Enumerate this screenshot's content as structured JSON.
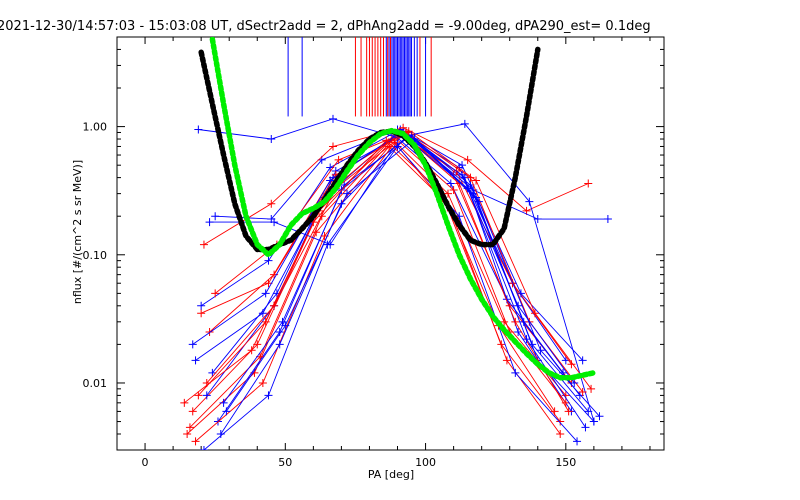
{
  "chart_data": {
    "type": "line",
    "title": "2021-12-30/14:57:03 - 15:03:08 UT, dSectr2add = 2, dPhAng2add = -9.00deg, dPA290_est=   0.1deg",
    "xlabel": "PA [deg]",
    "ylabel": "nflux [#/(cm^2 s sr MeV)]",
    "xlim": [
      -10,
      185
    ],
    "ylim": [
      0.003,
      5
    ],
    "yscale": "log",
    "x_ticks": [
      0,
      50,
      100,
      150
    ],
    "x_tick_labels": [
      "0",
      "50",
      "100",
      "150"
    ],
    "y_ticks": [
      0.01,
      0.1,
      1.0
    ],
    "y_tick_labels": [
      "0.01",
      "0.10",
      "1.00"
    ],
    "grid": false,
    "legend": "none",
    "colors": {
      "blue": "#0000ff",
      "red": "#ff0000",
      "fit_black": "#000000",
      "fit_green": "#00ee00"
    },
    "fit_curves": [
      {
        "color": "fit_black",
        "style": "thick-dotted",
        "x": [
          20,
          24,
          28,
          32,
          36,
          40,
          44,
          48,
          52,
          56,
          60,
          64,
          68,
          72,
          76,
          80,
          84,
          88,
          92,
          96,
          100,
          104,
          108,
          112,
          116,
          120,
          124,
          128,
          132,
          136,
          140
        ],
        "y": [
          3.8,
          1.5,
          0.6,
          0.25,
          0.14,
          0.11,
          0.11,
          0.12,
          0.13,
          0.16,
          0.2,
          0.27,
          0.37,
          0.5,
          0.65,
          0.8,
          0.9,
          0.92,
          0.85,
          0.7,
          0.52,
          0.36,
          0.24,
          0.17,
          0.13,
          0.12,
          0.12,
          0.16,
          0.4,
          1.2,
          4.0
        ]
      },
      {
        "color": "fit_green",
        "style": "thick-dotted",
        "x": [
          24,
          28,
          32,
          36,
          40,
          44,
          48,
          52,
          56,
          60,
          64,
          68,
          72,
          76,
          80,
          84,
          88,
          92,
          96,
          100,
          104,
          108,
          112,
          116,
          120,
          124,
          128,
          132,
          136,
          140,
          144,
          148,
          152,
          156,
          160
        ],
        "y": [
          4.8,
          1.5,
          0.5,
          0.2,
          0.12,
          0.1,
          0.12,
          0.17,
          0.21,
          0.23,
          0.26,
          0.33,
          0.45,
          0.6,
          0.75,
          0.88,
          0.93,
          0.88,
          0.72,
          0.5,
          0.3,
          0.17,
          0.1,
          0.065,
          0.045,
          0.033,
          0.026,
          0.021,
          0.017,
          0.014,
          0.012,
          0.011,
          0.011,
          0.0115,
          0.012
        ]
      }
    ],
    "vertical_marker_x": [
      51,
      56,
      75,
      77,
      79,
      80,
      81,
      82,
      83,
      84,
      85,
      86,
      86.5,
      87,
      87.5,
      88,
      88.5,
      89,
      89.5,
      90,
      90.5,
      91,
      91.5,
      92,
      92.5,
      93,
      93.5,
      94,
      94.5,
      95,
      96,
      97,
      98,
      100,
      102
    ],
    "vertical_marker_colors": [
      "blue",
      "blue",
      "red",
      "red",
      "red",
      "red",
      "red",
      "red",
      "red",
      "red",
      "red",
      "blue",
      "red",
      "blue",
      "red",
      "blue",
      "blue",
      "blue",
      "blue",
      "blue",
      "blue",
      "blue",
      "blue",
      "blue",
      "blue",
      "blue",
      "blue",
      "blue",
      "blue",
      "blue",
      "blue",
      "blue",
      "red",
      "blue",
      "red"
    ],
    "series": [
      {
        "color": "blue",
        "x": [
          25,
          45,
          63,
          90,
          112,
          131,
          150
        ],
        "y": [
          0.2,
          0.19,
          0.55,
          0.95,
          0.48,
          0.06,
          0.015
        ]
      },
      {
        "color": "red",
        "x": [
          20,
          44,
          66,
          91,
          110,
          130,
          152
        ],
        "y": [
          0.035,
          0.06,
          0.38,
          0.9,
          0.42,
          0.04,
          0.01
        ]
      },
      {
        "color": "blue",
        "x": [
          18,
          42,
          64,
          89,
          109,
          129,
          149
        ],
        "y": [
          0.015,
          0.035,
          0.28,
          0.85,
          0.36,
          0.045,
          0.012
        ]
      },
      {
        "color": "red",
        "x": [
          17,
          40,
          62,
          88,
          108,
          128,
          150
        ],
        "y": [
          0.006,
          0.02,
          0.22,
          0.8,
          0.3,
          0.03,
          0.008
        ]
      },
      {
        "color": "blue",
        "x": [
          22,
          46,
          67,
          92,
          114,
          133,
          152
        ],
        "y": [
          0.008,
          0.04,
          0.4,
          0.92,
          0.4,
          0.025,
          0.006
        ]
      },
      {
        "color": "red",
        "x": [
          15,
          39,
          61,
          87,
          107,
          127,
          148
        ],
        "y": [
          0.004,
          0.012,
          0.15,
          0.7,
          0.26,
          0.02,
          0.005
        ]
      },
      {
        "color": "blue",
        "x": [
          24,
          47,
          68,
          93,
          116,
          135,
          155
        ],
        "y": [
          0.012,
          0.05,
          0.45,
          0.9,
          0.35,
          0.03,
          0.008
        ]
      },
      {
        "color": "red",
        "x": [
          19,
          43,
          65,
          90,
          111,
          131,
          152
        ],
        "y": [
          0.008,
          0.03,
          0.3,
          0.88,
          0.45,
          0.06,
          0.014
        ]
      },
      {
        "color": "blue",
        "x": [
          26,
          48,
          70,
          94,
          117,
          138,
          158
        ],
        "y": [
          0.005,
          0.025,
          0.32,
          0.85,
          0.3,
          0.02,
          0.006
        ]
      },
      {
        "color": "red",
        "x": [
          16,
          41,
          63,
          89,
          110,
          130,
          150
        ],
        "y": [
          0.0045,
          0.016,
          0.2,
          0.82,
          0.32,
          0.025,
          0.007
        ]
      },
      {
        "color": "blue",
        "x": [
          20,
          44,
          66,
          91,
          113,
          134,
          156
        ],
        "y": [
          0.04,
          0.09,
          0.48,
          0.95,
          0.5,
          0.05,
          0.015
        ]
      },
      {
        "color": "red",
        "x": [
          21,
          45,
          67,
          92,
          115,
          136,
          158
        ],
        "y": [
          0.12,
          0.25,
          0.7,
          0.98,
          0.55,
          0.22,
          0.36
        ]
      },
      {
        "color": "blue",
        "x": [
          23,
          46,
          66,
          92,
          117,
          140,
          165
        ],
        "y": [
          0.18,
          0.18,
          0.12,
          0.9,
          0.32,
          0.19,
          0.19
        ]
      },
      {
        "color": "blue",
        "x": [
          19,
          45,
          67,
          90,
          114,
          137,
          160
        ],
        "y": [
          0.95,
          0.8,
          1.15,
          0.82,
          1.05,
          0.26,
          0.005
        ]
      },
      {
        "color": "red",
        "x": [
          23,
          46,
          68,
          93,
          116,
          137,
          156
        ],
        "y": [
          0.025,
          0.07,
          0.42,
          0.9,
          0.4,
          0.03,
          0.0085
        ]
      },
      {
        "color": "blue",
        "x": [
          28,
          49,
          71,
          95,
          118,
          140,
          160
        ],
        "y": [
          0.007,
          0.03,
          0.35,
          0.86,
          0.28,
          0.015,
          0.005
        ]
      },
      {
        "color": "red",
        "x": [
          18,
          42,
          64,
          89,
          109,
          129,
          148
        ],
        "y": [
          0.0035,
          0.01,
          0.14,
          0.75,
          0.22,
          0.015,
          0.004
        ]
      },
      {
        "color": "blue",
        "x": [
          21,
          44,
          65,
          90,
          112,
          132,
          154
        ],
        "y": [
          0.003,
          0.008,
          0.12,
          0.7,
          0.2,
          0.012,
          0.0035
        ]
      },
      {
        "color": "red",
        "x": [
          25,
          47,
          69,
          94,
          118,
          139,
          159
        ],
        "y": [
          0.05,
          0.12,
          0.55,
          0.92,
          0.38,
          0.035,
          0.009
        ]
      },
      {
        "color": "blue",
        "x": [
          17,
          43,
          66,
          91,
          113,
          133,
          153
        ],
        "y": [
          0.02,
          0.05,
          0.38,
          0.9,
          0.42,
          0.04,
          0.01
        ]
      },
      {
        "color": "red",
        "x": [
          22,
          46,
          68,
          92,
          112,
          132,
          151
        ],
        "y": [
          0.01,
          0.04,
          0.33,
          0.86,
          0.36,
          0.03,
          0.006
        ]
      },
      {
        "color": "blue",
        "x": [
          27,
          48,
          70,
          93,
          115,
          136,
          157
        ],
        "y": [
          0.004,
          0.02,
          0.25,
          0.82,
          0.33,
          0.022,
          0.0045
        ]
      },
      {
        "color": "red",
        "x": [
          14,
          38,
          60,
          86,
          106,
          126,
          146
        ],
        "y": [
          0.007,
          0.018,
          0.18,
          0.78,
          0.3,
          0.028,
          0.006
        ]
      },
      {
        "color": "blue",
        "x": [
          29,
          50,
          72,
          96,
          119,
          141,
          162
        ],
        "y": [
          0.006,
          0.028,
          0.3,
          0.8,
          0.26,
          0.018,
          0.0055
        ]
      }
    ]
  }
}
